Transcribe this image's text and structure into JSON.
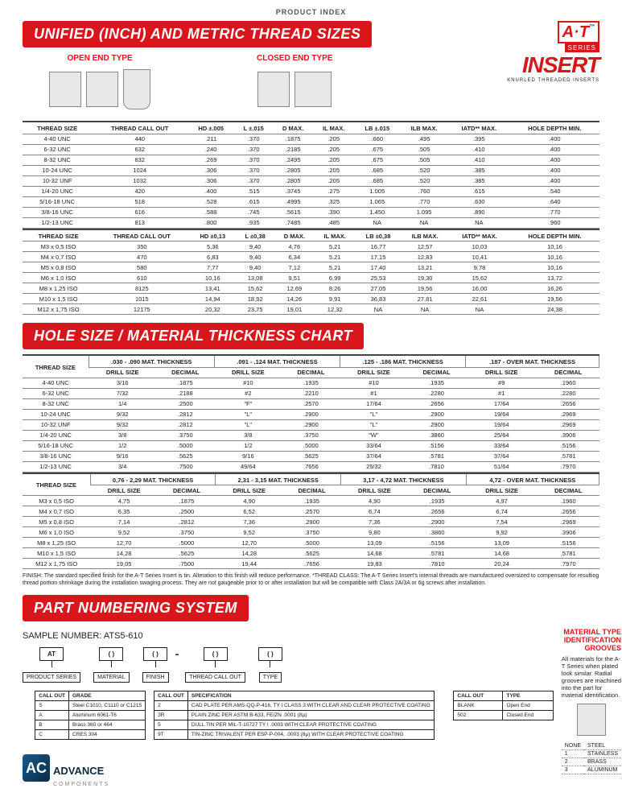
{
  "topLabel": "PRODUCT INDEX",
  "header1": "UNIFIED (INCH) AND METRIC THREAD SIZES",
  "header2": "HOLE SIZE / MATERIAL THICKNESS CHART",
  "header3": "PART NUMBERING SYSTEM",
  "brand": {
    "at": "A·T",
    "tm": "™",
    "series": "SERIES",
    "insert": "INSERT",
    "sub": "KNURLED THREADED INSERTS"
  },
  "diagTitles": {
    "open": "OPEN END TYPE",
    "closed": "CLOSED END TYPE"
  },
  "t1": {
    "cols": [
      "THREAD SIZE",
      "THREAD CALL OUT",
      "HD ±.005",
      "L ±.015",
      "D MAX.",
      "IL MAX.",
      "LB ±.015",
      "ILB MAX.",
      "IATD** MAX.",
      "HOLE DEPTH MIN."
    ],
    "rows": [
      [
        "4-40 UNC",
        "440",
        ".211",
        ".370",
        ".1875",
        ".205",
        ".660",
        ".495",
        ".395",
        ".400"
      ],
      [
        "6-32 UNC",
        "632",
        ".240",
        ".370",
        ".2185",
        ".205",
        ".675",
        ".505",
        ".410",
        ".400"
      ],
      [
        "8-32 UNC",
        "832",
        ".269",
        ".370",
        ".2495",
        ".205",
        ".675",
        ".505",
        ".410",
        ".400"
      ],
      [
        "10-24 UNC",
        "1024",
        ".306",
        ".370",
        ".2805",
        ".205",
        ".685",
        ".520",
        ".385",
        ".400"
      ],
      [
        "10-32 UNF",
        "1032",
        ".306",
        ".370",
        ".2805",
        ".205",
        ".685",
        ".520",
        ".385",
        ".400"
      ],
      [
        "1/4-20 UNC",
        "420",
        ".400",
        ".515",
        ".3745",
        ".275",
        "1.005",
        ".760",
        ".615",
        ".540"
      ],
      [
        "5/16-18 UNC",
        "518",
        ".528",
        ".615",
        ".4995",
        ".325",
        "1.065",
        ".770",
        ".630",
        ".640"
      ],
      [
        "3/8-16 UNC",
        "616",
        ".588",
        ".745",
        ".5615",
        ".390",
        "1.450",
        "1.095",
        ".890",
        ".770"
      ],
      [
        "1/2-13 UNC",
        "813",
        ".800",
        ".935",
        ".7485",
        ".485",
        "NA",
        "NA",
        "NA",
        ".960"
      ]
    ]
  },
  "t1m": {
    "cols": [
      "THREAD SIZE",
      "THREAD CALL OUT",
      "HD ±0,13",
      "L ±0,38",
      "D MAX.",
      "IL MAX.",
      "LB ±0,38",
      "ILB MAX.",
      "IATD** MAX.",
      "HOLE DEPTH MIN."
    ],
    "rows": [
      [
        "M3 x 0,5 ISO",
        "350",
        "5,36",
        "9,40",
        "4,76",
        "5,21",
        "16,77",
        "12,57",
        "10,03",
        "10,16"
      ],
      [
        "M4 x 0,7 ISO",
        "470",
        "6,83",
        "9,40",
        "6,34",
        "5,21",
        "17,15",
        "12,83",
        "10,41",
        "10,16"
      ],
      [
        "M5 x 0,8 ISO",
        "580",
        "7,77",
        "9,40",
        "7,12",
        "5,21",
        "17,40",
        "13,21",
        "9,78",
        "10,16"
      ],
      [
        "M6 x 1,0 ISO",
        "610",
        "10,16",
        "13,08",
        "9,51",
        "6,99",
        "25,53",
        "19,30",
        "15,62",
        "13,72"
      ],
      [
        "M8 x 1,25 ISO",
        "8125",
        "13,41",
        "15,62",
        "12,69",
        "8,26",
        "27,05",
        "19,56",
        "16,00",
        "16,26"
      ],
      [
        "M10 x 1,5 ISO",
        "1015",
        "14,94",
        "18,92",
        "14,26",
        "9,91",
        "36,83",
        "27,81",
        "22,61",
        "19,56"
      ],
      [
        "M12 x 1,75 ISO",
        "12175",
        "20,32",
        "23,75",
        "19,01",
        "12,32",
        "NA",
        "NA",
        "NA",
        "24,38"
      ]
    ]
  },
  "t2": {
    "groups": [
      ".030 - .090 MAT. THICKNESS",
      ".091 - .124 MAT. THICKNESS",
      ".125 - .186 MAT. THICKNESS",
      ".187 - OVER MAT. THICKNESS"
    ],
    "sub": [
      "DRILL SIZE",
      "DECIMAL"
    ],
    "leftcol": "THREAD SIZE",
    "rows": [
      [
        "4-40 UNC",
        "3/16",
        ".1875",
        "#10",
        ".1935",
        "#10",
        ".1935",
        "#9",
        ".1960"
      ],
      [
        "6-32 UNC",
        "7/32",
        ".2188",
        "#2",
        ".2210",
        "#1",
        ".2280",
        "#1",
        ".2280"
      ],
      [
        "8-32 UNC",
        "1/4",
        ".2500",
        "\"F\"",
        ".2570",
        "17/64",
        ".2656",
        "17/64",
        ".2656"
      ],
      [
        "10-24 UNC",
        "9/32",
        ".2812",
        "\"L\"",
        ".2900",
        "\"L\"",
        ".2900",
        "19/64",
        ".2969"
      ],
      [
        "10-32 UNF",
        "9/32",
        ".2812",
        "\"L\"",
        ".2900",
        "\"L\"",
        ".2900",
        "19/64",
        ".2969"
      ],
      [
        "1/4-20 UNC",
        "3/8",
        ".3750",
        "3/8",
        ".3750",
        "\"W\"",
        ".3860",
        "25/64",
        ".3906"
      ],
      [
        "5/16-18 UNC",
        "1/2",
        ".5000",
        "1/2",
        ".5000",
        "33/64",
        ".5156",
        "33/64",
        ".5156"
      ],
      [
        "3/8-16 UNC",
        "9/16",
        ".5625",
        "9/16",
        ".5625",
        "37/64",
        ".5781",
        "37/64",
        ".5781"
      ],
      [
        "1/2-13 UNC",
        "3/4",
        ".7500",
        "49/64",
        ".7656",
        "25/32",
        ".7810",
        "51/64",
        ".7970"
      ]
    ]
  },
  "t2m": {
    "groups": [
      "0,76 - 2,29 MAT. THICKNESS",
      "2,31 - 3,15 MAT. THICKNESS",
      "3,17 - 4,72 MAT. THICKNESS",
      "4,72 - OVER MAT. THICKNESS"
    ],
    "rows": [
      [
        "M3 x 0,5 ISO",
        "4,75",
        ".1875",
        "4,90",
        ".1935",
        "4,90",
        ".1935",
        "4,97",
        ".1960"
      ],
      [
        "M4 x 0,7 ISO",
        "6,35",
        ".2500",
        "6,52",
        ".2570",
        "6,74",
        ".2656",
        "6,74",
        ".2656"
      ],
      [
        "M5 x 0,8 ISO",
        "7,14",
        ".2812",
        "7,36",
        ".2900",
        "7,36",
        ".2900",
        "7,54",
        ".2969"
      ],
      [
        "M6 x 1,0 ISO",
        "9,52",
        ".3750",
        "9,52",
        ".3750",
        "9,80",
        ".3860",
        "9,92",
        ".3906"
      ],
      [
        "M8 x 1,25 ISO",
        "12,70",
        ".5000",
        "12,70",
        ".5000",
        "13,09",
        ".5156",
        "13,09",
        ".5156"
      ],
      [
        "M10 x 1,5 ISO",
        "14,28",
        ".5625",
        "14,28",
        ".5625",
        "14,68",
        ".5781",
        "14,68",
        ".5781"
      ],
      [
        "M12 x 1,75 ISO",
        "19,05",
        ".7500",
        "19,44",
        ".7656",
        "19,83",
        ".7810",
        "20,24",
        ".7970"
      ]
    ]
  },
  "footnote": "FINISH: The standard specified finish for the A-T Series Insert is tin. Alteration to this finish will reduce performance. *THREAD CLASS: The A-T Series Insert's internal threads are manufactured oversized to compensate for resulting thread portion shrinkage during the installation swaging process. They are not gaugeable prior to or after installation but will be compatible with Class 2A/3A or 6g screws after installation.",
  "pn": {
    "sample": "SAMPLE NUMBER: ATS5-610",
    "segs": [
      {
        "slot": "AT",
        "lbl": "PRODUCT SERIES"
      },
      {
        "slot": "(   )",
        "lbl": "MATERIAL"
      },
      {
        "slot": "(       )",
        "lbl": "FINISH"
      },
      {
        "slot": "(   )",
        "lbl": "THREAD CALL OUT"
      },
      {
        "slot": "(   )",
        "lbl": "TYPE"
      }
    ],
    "material": {
      "h": [
        "CALL OUT",
        "GRADE"
      ],
      "r": [
        [
          "S",
          "Steel C1010, C1110 or C1215"
        ],
        [
          "A",
          "Aluminum 6061-T6"
        ],
        [
          "B",
          "Brass 360 or 464"
        ],
        [
          "C",
          "CRES 304"
        ]
      ]
    },
    "finish": {
      "h": [
        "CALL OUT",
        "SPECIFICATION"
      ],
      "r": [
        [
          "2",
          "CAD PLATE PER AMS-QQ-P-416, TY I CLASS 3 WITH CLEAR AND CLEAR PROTECTIVE COATING"
        ],
        [
          "3R",
          "PLAIN ZINC PER ASTM B-633, FE/ZN .0001 (8µ)"
        ],
        [
          "5",
          "DULL TIN PER MIL-T-10727 TY I .0003 WITH CLEAR PROTECTIVE COATING"
        ],
        [
          "9T",
          "TIN-ZINC TRIVALENT PER ESP-P-004, .0003 (8µ) WITH CLEAR PROTECTIVE COATING"
        ]
      ]
    },
    "type": {
      "h": [
        "CALL OUT",
        "TYPE"
      ],
      "r": [
        [
          "BLANK",
          "Open End"
        ],
        [
          "502",
          "Closed End"
        ]
      ]
    }
  },
  "grooves": {
    "title": "MATERIAL TYPE IDENTIFICATION GROOVES",
    "text": "All materials for the A-T Series when plated look similar. Radial grooves are machined into the part for material identification.",
    "rows": [
      [
        "NONE",
        "STEEL"
      ],
      [
        "1",
        "STAINLESS"
      ],
      [
        "2",
        "BRASS"
      ],
      [
        "3",
        "ALUMINUM"
      ]
    ]
  },
  "logo": {
    "mark": "AC",
    "name": "ADVANCE",
    "sub": "COMPONENTS"
  }
}
